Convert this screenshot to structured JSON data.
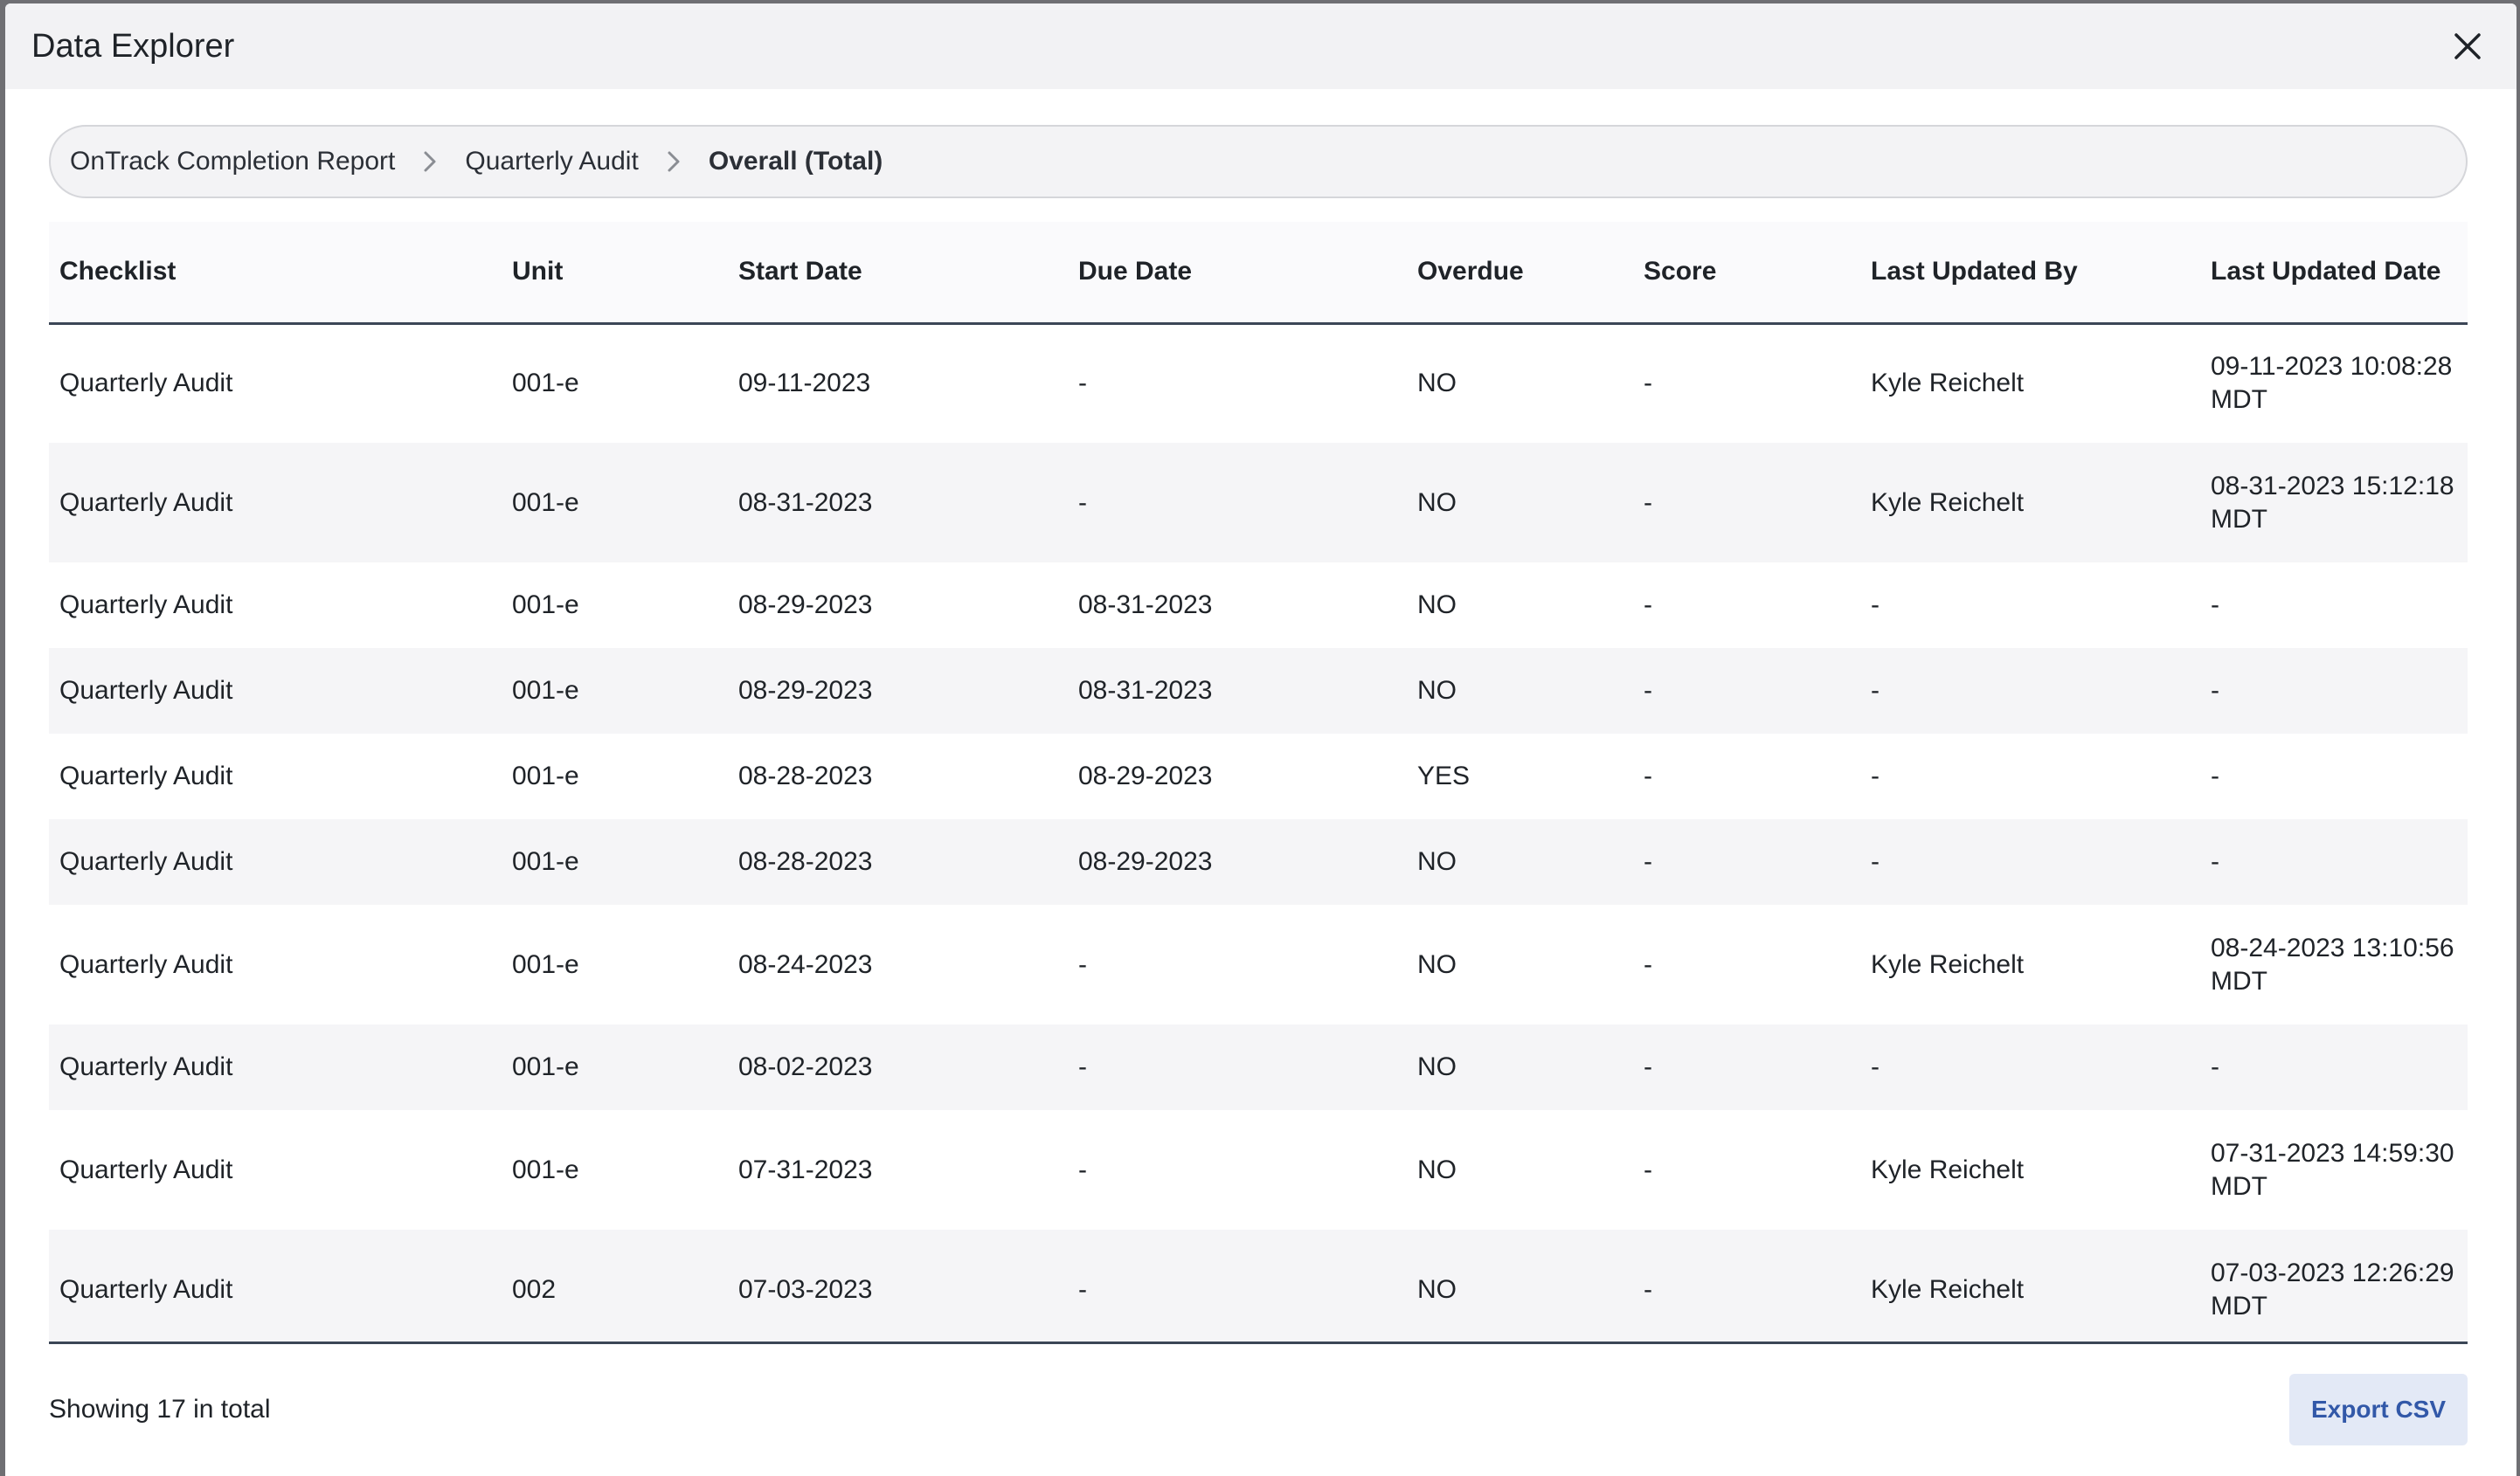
{
  "modal": {
    "title": "Data Explorer"
  },
  "breadcrumb": {
    "items": [
      "OnTrack Completion Report",
      "Quarterly Audit"
    ],
    "current": "Overall (Total)"
  },
  "table": {
    "columns": [
      "Checklist",
      "Unit",
      "Start Date",
      "Due Date",
      "Overdue",
      "Score",
      "Last Updated By",
      "Last Updated Date"
    ],
    "rows": [
      {
        "checklist": "Quarterly Audit",
        "unit": "001-e",
        "start": "09-11-2023",
        "due": "-",
        "overdue": "NO",
        "score": "-",
        "by": "Kyle Reichelt",
        "updated_line1": "09-11-2023 10:08:28",
        "updated_line2": "MDT"
      },
      {
        "checklist": "Quarterly Audit",
        "unit": "001-e",
        "start": "08-31-2023",
        "due": "-",
        "overdue": "NO",
        "score": "-",
        "by": "Kyle Reichelt",
        "updated_line1": "08-31-2023 15:12:18",
        "updated_line2": "MDT"
      },
      {
        "checklist": "Quarterly Audit",
        "unit": "001-e",
        "start": "08-29-2023",
        "due": "08-31-2023",
        "overdue": "NO",
        "score": "-",
        "by": "-",
        "updated_line1": "-",
        "updated_line2": ""
      },
      {
        "checklist": "Quarterly Audit",
        "unit": "001-e",
        "start": "08-29-2023",
        "due": "08-31-2023",
        "overdue": "NO",
        "score": "-",
        "by": "-",
        "updated_line1": "-",
        "updated_line2": ""
      },
      {
        "checklist": "Quarterly Audit",
        "unit": "001-e",
        "start": "08-28-2023",
        "due": "08-29-2023",
        "overdue": "YES",
        "score": "-",
        "by": "-",
        "updated_line1": "-",
        "updated_line2": ""
      },
      {
        "checklist": "Quarterly Audit",
        "unit": "001-e",
        "start": "08-28-2023",
        "due": "08-29-2023",
        "overdue": "NO",
        "score": "-",
        "by": "-",
        "updated_line1": "-",
        "updated_line2": ""
      },
      {
        "checklist": "Quarterly Audit",
        "unit": "001-e",
        "start": "08-24-2023",
        "due": "-",
        "overdue": "NO",
        "score": "-",
        "by": "Kyle Reichelt",
        "updated_line1": "08-24-2023 13:10:56",
        "updated_line2": "MDT"
      },
      {
        "checklist": "Quarterly Audit",
        "unit": "001-e",
        "start": "08-02-2023",
        "due": "-",
        "overdue": "NO",
        "score": "-",
        "by": "-",
        "updated_line1": "-",
        "updated_line2": ""
      },
      {
        "checklist": "Quarterly Audit",
        "unit": "001-e",
        "start": "07-31-2023",
        "due": "-",
        "overdue": "NO",
        "score": "-",
        "by": "Kyle Reichelt",
        "updated_line1": "07-31-2023 14:59:30",
        "updated_line2": "MDT"
      },
      {
        "checklist": "Quarterly Audit",
        "unit": "002",
        "start": "07-03-2023",
        "due": "-",
        "overdue": "NO",
        "score": "-",
        "by": "Kyle Reichelt",
        "updated_line1": "07-03-2023 12:26:29",
        "updated_line2": "MDT"
      }
    ]
  },
  "footer": {
    "count_text": "Showing 17 in total",
    "export_label": "Export CSV"
  },
  "colors": {
    "header_bg": "#f2f2f4",
    "accent": "#3258a8",
    "export_bg": "#e3e9f6",
    "divider": "#3b4656"
  },
  "icons": {
    "close": "close-icon",
    "separator": "chevron-right-icon"
  }
}
